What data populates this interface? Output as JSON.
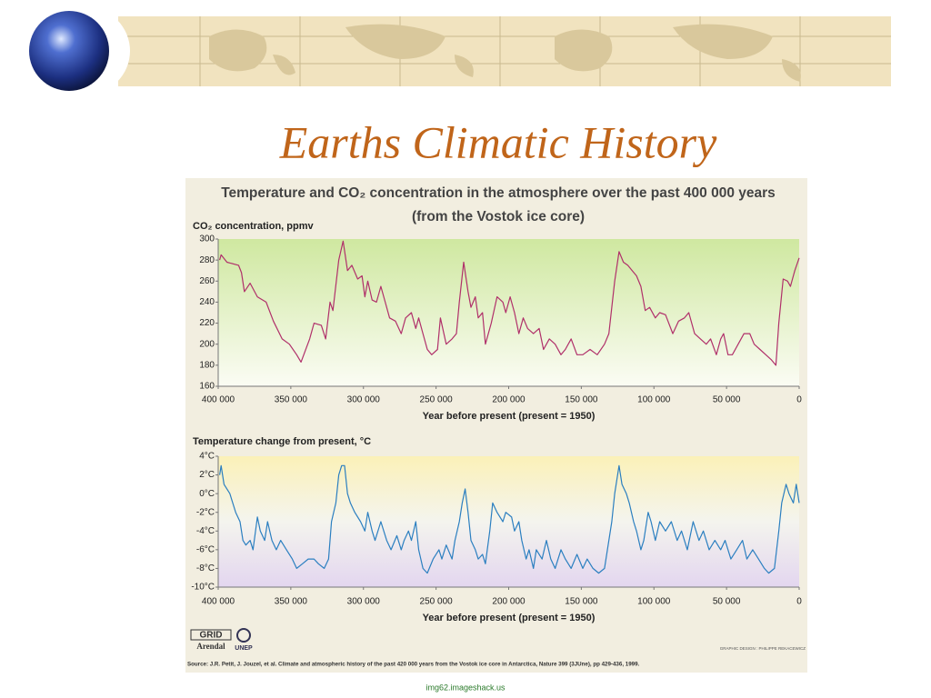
{
  "title": "Earths Climatic History",
  "figure": {
    "title": "Temperature and CO₂ concentration in the atmosphere over the past 400 000 years",
    "subtitle": "(from the Vostok ice core)",
    "source": "Source: J.R. Petit, J. Jouzel, et al. Climate and atmospheric history of the past 420 000 years from the Vostok ice core in Antarctica, Nature 399 (3JUne), pp 429-436, 1999.",
    "credit": "GRAPHIC DESIGN : PHILIPPE REKACEWICZ",
    "logo1": "GRID",
    "logo2": "Arendal",
    "logo3": "UNEP"
  },
  "footer": "img62.imageshack.us",
  "chart_data": [
    {
      "type": "line",
      "y_label": "CO₂ concentration, ppmv",
      "x_label": "Year before present (present = 1950)",
      "color": "#b0306a",
      "xlim": [
        400000,
        0
      ],
      "xticks": [
        {
          "value": 400000,
          "label": "400 000"
        },
        {
          "value": 350000,
          "label": "350 000"
        },
        {
          "value": 300000,
          "label": "300 000"
        },
        {
          "value": 250000,
          "label": "250 000"
        },
        {
          "value": 200000,
          "label": "200 000"
        },
        {
          "value": 150000,
          "label": "150 000"
        },
        {
          "value": 100000,
          "label": "100 000"
        },
        {
          "value": 50000,
          "label": "50 000"
        },
        0
      ],
      "ylim": [
        160,
        300
      ],
      "yticks": [
        160,
        180,
        200,
        220,
        240,
        260,
        280,
        300
      ],
      "x": [
        399000,
        398000,
        394000,
        386000,
        384000,
        382000,
        378000,
        373000,
        367000,
        362000,
        356000,
        351000,
        346000,
        343000,
        337000,
        334000,
        329000,
        326000,
        323000,
        321000,
        317000,
        314000,
        311000,
        308000,
        304000,
        301000,
        299000,
        297000,
        294000,
        291000,
        288000,
        285000,
        282000,
        278000,
        274000,
        271000,
        267000,
        264000,
        262000,
        259000,
        256000,
        253000,
        249000,
        247000,
        243000,
        239000,
        236000,
        234000,
        231000,
        228000,
        226000,
        223000,
        221000,
        218000,
        216000,
        212000,
        208000,
        204000,
        202000,
        199000,
        196000,
        193000,
        190000,
        187000,
        183000,
        179000,
        176000,
        172000,
        168000,
        164000,
        161000,
        157000,
        153000,
        149000,
        144000,
        139000,
        134000,
        131000,
        127000,
        124000,
        121000,
        118000,
        115000,
        112000,
        109000,
        106000,
        103000,
        99000,
        96000,
        92000,
        87000,
        83000,
        79000,
        76000,
        72000,
        68000,
        64000,
        61000,
        57000,
        54000,
        52000,
        49000,
        46000,
        42000,
        38000,
        34000,
        31000,
        27000,
        23000,
        19000,
        16000,
        14000,
        11000,
        8000,
        6000,
        3000,
        0
      ],
      "values": [
        280,
        285,
        278,
        275,
        268,
        250,
        258,
        245,
        240,
        222,
        205,
        200,
        190,
        183,
        205,
        220,
        218,
        205,
        240,
        232,
        280,
        298,
        270,
        275,
        262,
        265,
        245,
        260,
        242,
        240,
        255,
        240,
        225,
        222,
        210,
        225,
        230,
        215,
        225,
        210,
        195,
        190,
        195,
        225,
        200,
        205,
        210,
        240,
        278,
        250,
        235,
        245,
        225,
        230,
        200,
        220,
        245,
        240,
        230,
        245,
        230,
        210,
        225,
        215,
        210,
        215,
        195,
        205,
        200,
        190,
        195,
        205,
        190,
        190,
        195,
        190,
        200,
        210,
        260,
        288,
        278,
        275,
        270,
        265,
        255,
        232,
        235,
        225,
        230,
        228,
        210,
        222,
        225,
        230,
        210,
        205,
        200,
        205,
        190,
        205,
        210,
        190,
        190,
        200,
        210,
        210,
        200,
        195,
        190,
        185,
        180,
        220,
        262,
        260,
        255,
        270,
        282
      ]
    },
    {
      "type": "line",
      "y_label": "Temperature change from present, °C",
      "x_label": "Year before present (present = 1950)",
      "color": "#2b7fc0",
      "xlim": [
        400000,
        0
      ],
      "xticks": [
        {
          "value": 400000,
          "label": "400 000"
        },
        {
          "value": 350000,
          "label": "350 000"
        },
        {
          "value": 300000,
          "label": "300 000"
        },
        {
          "value": 250000,
          "label": "250 000"
        },
        {
          "value": 200000,
          "label": "200 000"
        },
        {
          "value": 150000,
          "label": "150 000"
        },
        {
          "value": 100000,
          "label": "100 000"
        },
        {
          "value": 50000,
          "label": "50 000"
        },
        0
      ],
      "ylim": [
        -10,
        4
      ],
      "yticks": [
        {
          "value": -10,
          "label": "-10°C"
        },
        {
          "value": -8,
          "label": "-8°C"
        },
        {
          "value": -6,
          "label": "-6°C"
        },
        {
          "value": -4,
          "label": "-4°C"
        },
        {
          "value": -2,
          "label": "-2°C"
        },
        {
          "value": 0,
          "label": "0°C"
        },
        {
          "value": 2,
          "label": "2°C"
        },
        {
          "value": 4,
          "label": "4°C"
        }
      ],
      "x": [
        399000,
        398000,
        396000,
        392000,
        388000,
        385000,
        383000,
        381000,
        378000,
        376000,
        373000,
        371000,
        368000,
        366000,
        363000,
        360000,
        357000,
        353000,
        349000,
        346000,
        342000,
        338000,
        334000,
        331000,
        327000,
        324000,
        322000,
        319000,
        317000,
        315000,
        313000,
        311000,
        309000,
        306000,
        302000,
        299000,
        297000,
        294000,
        292000,
        288000,
        284000,
        281000,
        277000,
        274000,
        272000,
        269000,
        267000,
        264000,
        262000,
        259000,
        256000,
        252000,
        248000,
        246000,
        243000,
        239000,
        237000,
        234000,
        232000,
        230000,
        228000,
        226000,
        223000,
        221000,
        218000,
        216000,
        213000,
        211000,
        208000,
        204000,
        202000,
        198000,
        196000,
        193000,
        191000,
        188000,
        186000,
        183000,
        181000,
        177000,
        174000,
        171000,
        168000,
        164000,
        161000,
        157000,
        153000,
        149000,
        146000,
        142000,
        138000,
        134000,
        132000,
        129000,
        127000,
        124000,
        122000,
        119000,
        117000,
        114000,
        112000,
        109000,
        107000,
        104000,
        102000,
        99000,
        96000,
        92000,
        88000,
        84000,
        81000,
        77000,
        73000,
        69000,
        66000,
        62000,
        58000,
        54000,
        51000,
        47000,
        43000,
        39000,
        36000,
        32000,
        28000,
        24000,
        21000,
        17000,
        14000,
        12000,
        9000,
        7000,
        4000,
        2000,
        0
      ],
      "values": [
        2,
        3,
        1,
        0,
        -2,
        -3,
        -5,
        -5.5,
        -5,
        -6,
        -2.5,
        -4,
        -5,
        -3,
        -5,
        -6,
        -5,
        -6,
        -7,
        -8,
        -7.5,
        -7,
        -7,
        -7.5,
        -8,
        -7,
        -3,
        -1,
        2,
        3,
        3,
        0,
        -1,
        -2,
        -3,
        -4,
        -2,
        -4,
        -5,
        -3,
        -5,
        -6,
        -4.5,
        -6,
        -5,
        -4,
        -5,
        -3,
        -6,
        -8,
        -8.5,
        -7,
        -6,
        -7,
        -5.5,
        -7,
        -5,
        -3,
        -1,
        0.5,
        -2,
        -5,
        -6,
        -7,
        -6.5,
        -7.5,
        -4,
        -1,
        -2,
        -3,
        -2,
        -2.5,
        -4,
        -3,
        -5,
        -7,
        -6,
        -8,
        -6,
        -7,
        -5,
        -7,
        -8,
        -6,
        -7,
        -8,
        -6.5,
        -8,
        -7,
        -8,
        -8.5,
        -8,
        -6,
        -3,
        0,
        3,
        1,
        0,
        -1,
        -3,
        -4,
        -6,
        -5,
        -2,
        -3,
        -5,
        -3,
        -4,
        -3,
        -5,
        -4,
        -6,
        -3,
        -5,
        -4,
        -6,
        -5,
        -6,
        -5,
        -7,
        -6,
        -5,
        -7,
        -6,
        -7,
        -8,
        -8.5,
        -8,
        -4,
        -1,
        1,
        0,
        -1,
        1,
        -1
      ]
    }
  ]
}
